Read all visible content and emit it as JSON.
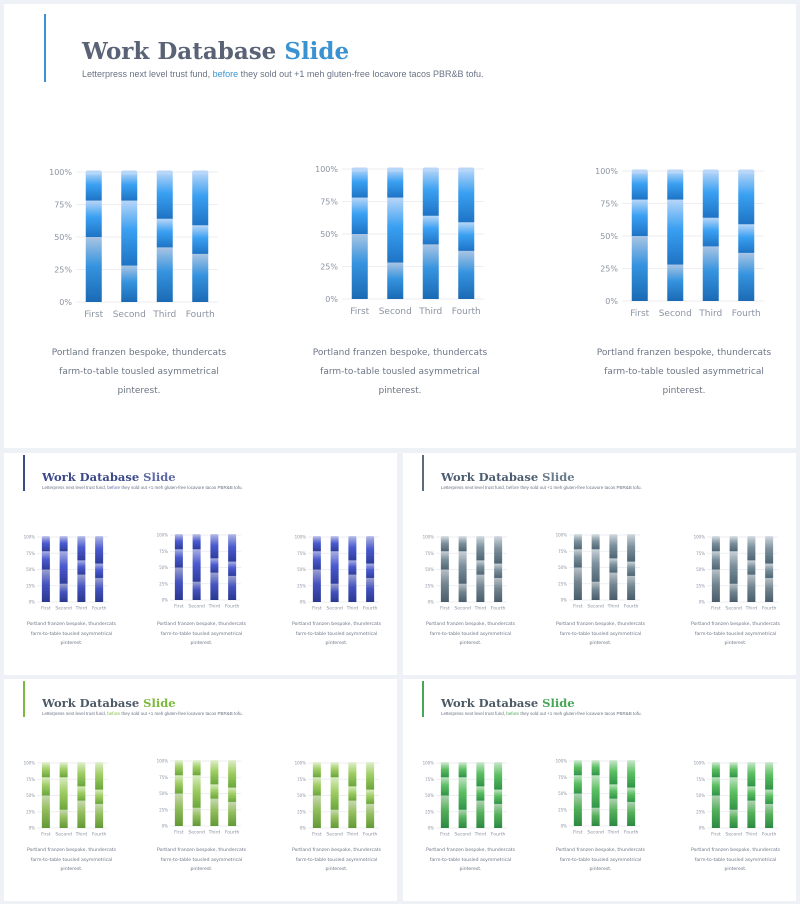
{
  "slide": {
    "title_main": "Work Database",
    "title_accent": "Slide",
    "subtitle_pre": "Letterpress next level trust fund, ",
    "subtitle_highlight": "before",
    "subtitle_post": " they sold out +1 meh gluten-free locavore tacos PBR&B tofu.",
    "caption_line1": "Portland franzen  bespoke, thundercats",
    "caption_line2": "farm-to-table tousled asymmetrical",
    "caption_line3": "pinterest."
  },
  "themes": [
    {
      "name": "blue",
      "title_color": "#5a6376",
      "accent": "#3a93d0",
      "line": "#3a93d0",
      "bar": [
        "#1e73c4",
        "#3aa0f2",
        "#b8d6f8"
      ]
    },
    {
      "name": "indigo",
      "title_color": "#3c4a8a",
      "accent": "#5e6aa6",
      "line": "#3c4a8a",
      "bar": [
        "#2e3c9c",
        "#4a5ad0",
        "#a9b0e2"
      ]
    },
    {
      "name": "slate",
      "title_color": "#4d5e70",
      "accent": "#6b7c8c",
      "line": "#5a6b7b",
      "bar": [
        "#4f6574",
        "#7b909c",
        "#c9d2d8"
      ]
    },
    {
      "name": "lime",
      "title_color": "#4d5a66",
      "accent": "#7db83f",
      "line": "#7db83f",
      "bar": [
        "#6aa63a",
        "#9fcd63",
        "#d9ecc1"
      ]
    },
    {
      "name": "green",
      "title_color": "#4d5a66",
      "accent": "#45a757",
      "line": "#45a757",
      "bar": [
        "#2f9447",
        "#5cbf62",
        "#bfe4c2"
      ]
    }
  ],
  "chart_data": {
    "type": "bar",
    "stacked": true,
    "categories": [
      "First",
      "Second",
      "Third",
      "Fourth"
    ],
    "y_ticks": [
      "0%",
      "25%",
      "50%",
      "75%",
      "100%"
    ],
    "ylim": [
      0,
      100
    ],
    "grid": true,
    "series": [
      {
        "values": [
          50,
          28,
          42,
          37
        ]
      },
      {
        "values": [
          28,
          50,
          22,
          22
        ]
      },
      {
        "values": [
          22,
          22,
          36,
          41
        ]
      }
    ]
  }
}
